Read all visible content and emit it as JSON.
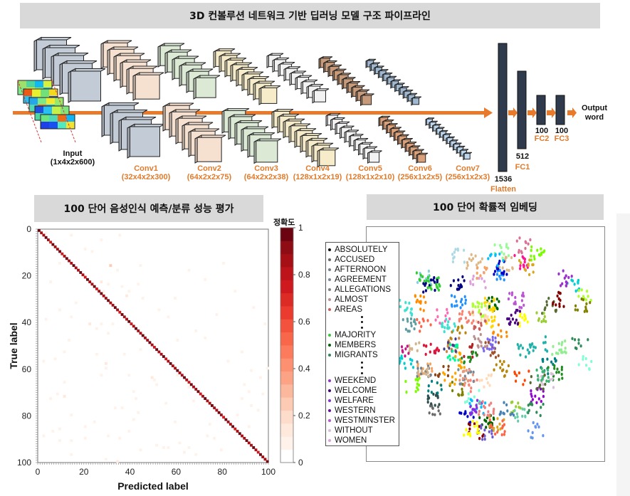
{
  "header": {
    "title": "3D 컨볼루션 네트워크 기반 딥러닝 모델 구조 파이프라인"
  },
  "pipeline": {
    "input": {
      "name": "Input",
      "shape": "(1x4x2x600)"
    },
    "layers": [
      {
        "name": "Conv1",
        "shape": "(32x4x2x300)",
        "color": "#f6e0d0"
      },
      {
        "name": "Conv2",
        "shape": "(64x2x2x75)",
        "color": "#dbe9d5"
      },
      {
        "name": "Conv3",
        "shape": "(64x2x2x38)",
        "color": "#dbe9d5"
      },
      {
        "name": "Conv4",
        "shape": "(128x1x2x19)",
        "color": "#f6ecc9"
      },
      {
        "name": "Conv5",
        "shape": "(128x1x2x10)",
        "color": "#f2f2f2"
      },
      {
        "name": "Conv6",
        "shape": "(256x1x2x5)",
        "color": "#f4c4a0"
      },
      {
        "name": "Conv7",
        "shape": "(256x1x2x3)",
        "color": "#bcd6ee"
      }
    ],
    "dense": [
      {
        "name": "Flatten",
        "size": "1536"
      },
      {
        "name": "FC1",
        "size": "512"
      },
      {
        "name": "FC2",
        "size": "100"
      },
      {
        "name": "FC3",
        "size": "100"
      }
    ],
    "output": {
      "line1": "Output",
      "line2": "word"
    },
    "accent_color": "#e9792b",
    "dense_color": "#2f3a4c"
  },
  "confusion": {
    "section_title": "100 단어 음성인식 예측/분류 성능 평가",
    "chart_data": {
      "type": "heatmap",
      "title": "100 단어 음성인식 예측/분류 성능 평가",
      "xlabel": "Predicted label",
      "ylabel": "True label",
      "xlim": [
        0,
        100
      ],
      "ylim": [
        0,
        100
      ],
      "xticks": [
        "0",
        "20",
        "40",
        "60",
        "80",
        "100"
      ],
      "yticks": [
        "0",
        "20",
        "40",
        "60",
        "80",
        "100"
      ],
      "diagonal_accuracy": 0.9,
      "off_diagonal": [
        [
          3,
          1,
          0.08
        ],
        [
          14,
          2,
          0.05
        ],
        [
          27,
          4,
          0.08
        ],
        [
          35,
          2,
          0.05
        ],
        [
          20,
          8,
          0.06
        ],
        [
          23,
          9,
          0.05
        ],
        [
          9,
          14,
          0.06
        ],
        [
          31,
          15,
          0.22
        ],
        [
          34,
          17,
          0.08
        ],
        [
          44,
          15,
          0.05
        ],
        [
          5,
          22,
          0.08
        ],
        [
          27,
          22,
          0.12
        ],
        [
          30,
          23,
          0.06
        ],
        [
          36,
          24,
          0.06
        ],
        [
          43,
          23,
          0.05
        ],
        [
          39,
          26,
          0.08
        ],
        [
          38,
          28,
          0.1
        ],
        [
          28,
          26,
          0.08
        ],
        [
          45,
          29,
          0.06
        ],
        [
          9,
          34,
          0.06
        ],
        [
          16,
          31,
          0.05
        ],
        [
          14,
          37,
          0.05
        ],
        [
          3,
          38,
          0.06
        ],
        [
          22,
          40,
          0.1
        ],
        [
          27,
          40,
          0.06
        ],
        [
          32,
          40,
          0.05
        ],
        [
          25,
          42,
          0.05
        ],
        [
          30,
          44,
          0.06
        ],
        [
          13,
          47,
          0.05
        ],
        [
          11,
          52,
          0.06
        ],
        [
          25,
          53,
          0.05
        ],
        [
          37,
          53,
          0.06
        ],
        [
          44,
          51,
          0.05
        ],
        [
          2,
          56,
          0.06
        ],
        [
          7,
          55,
          0.05
        ],
        [
          29,
          57,
          0.1
        ],
        [
          29,
          59,
          0.08
        ],
        [
          39,
          62,
          0.06
        ],
        [
          49,
          63,
          0.12
        ],
        [
          50,
          64,
          0.06
        ],
        [
          27,
          62,
          0.06
        ],
        [
          11,
          65,
          0.05
        ],
        [
          51,
          66,
          0.06
        ],
        [
          41,
          69,
          0.06
        ],
        [
          11,
          71,
          0.12
        ],
        [
          8,
          70,
          0.05
        ],
        [
          5,
          72,
          0.06
        ],
        [
          42,
          72,
          0.05
        ],
        [
          33,
          76,
          0.06
        ],
        [
          36,
          76,
          0.05
        ],
        [
          43,
          78,
          0.06
        ],
        [
          14,
          79,
          0.05
        ],
        [
          41,
          81,
          0.06
        ],
        [
          24,
          82,
          0.05
        ],
        [
          20,
          84,
          0.05
        ],
        [
          9,
          85,
          0.06
        ],
        [
          6,
          86,
          0.05
        ],
        [
          39,
          86,
          0.06
        ],
        [
          2,
          88,
          0.05
        ],
        [
          30,
          88,
          0.06
        ],
        [
          20,
          89,
          0.05
        ],
        [
          9,
          90,
          0.06
        ],
        [
          14,
          90,
          0.05
        ],
        [
          35,
          89,
          0.05
        ],
        [
          51,
          92,
          0.06
        ],
        [
          54,
          93,
          0.06
        ],
        [
          56,
          93,
          0.05
        ],
        [
          61,
          91,
          0.05
        ],
        [
          65,
          93,
          0.06
        ],
        [
          63,
          95,
          0.05
        ],
        [
          44,
          94,
          0.05
        ],
        [
          14,
          96,
          0.05
        ],
        [
          68,
          96,
          0.05
        ],
        [
          29,
          98,
          0.06
        ],
        [
          34,
          99,
          0.1
        ],
        [
          60,
          62,
          0.05
        ],
        [
          65,
          67,
          0.06
        ],
        [
          67,
          73,
          0.05
        ],
        [
          74,
          83,
          0.05
        ],
        [
          76,
          89,
          0.05
        ],
        [
          88,
          72,
          0.06
        ],
        [
          91,
          69,
          0.08
        ],
        [
          92,
          75,
          0.05
        ],
        [
          89,
          66,
          0.05
        ],
        [
          92,
          60,
          0.06
        ],
        [
          96,
          63,
          0.06
        ],
        [
          99,
          59,
          0.05
        ],
        [
          95,
          77,
          0.06
        ],
        [
          97,
          70,
          0.05
        ],
        [
          91,
          84,
          0.05
        ],
        [
          88,
          52,
          0.05
        ],
        [
          72,
          46,
          0.05
        ],
        [
          68,
          43,
          0.05
        ],
        [
          60,
          47,
          0.05
        ],
        [
          56,
          37,
          0.05
        ],
        [
          52,
          34,
          0.05
        ],
        [
          59,
          29,
          0.05
        ],
        [
          65,
          17,
          0.06
        ],
        [
          72,
          21,
          0.05
        ],
        [
          80,
          14,
          0.05
        ],
        [
          85,
          26,
          0.05
        ],
        [
          77,
          36,
          0.05
        ],
        [
          93,
          33,
          0.05
        ],
        [
          98,
          40,
          0.06
        ],
        [
          82,
          56,
          0.05
        ],
        [
          55,
          74,
          0.06
        ],
        [
          73,
          88,
          0.05
        ],
        [
          59,
          82,
          0.06
        ],
        [
          79,
          94,
          0.06
        ],
        [
          86,
          79,
          0.05
        ]
      ]
    },
    "colorbar": {
      "title": "정확도",
      "ticks": [
        "0",
        "0.2",
        "0.4",
        "0.6",
        "0.8",
        "1"
      ],
      "range": [
        0,
        1
      ],
      "colors": [
        "#ffffff",
        "#fff2ea",
        "#ffe8dc",
        "#fedccb",
        "#fdcbb4",
        "#fcb89c",
        "#fca385",
        "#fc9070",
        "#fb7b5c",
        "#f8674a",
        "#f3533c",
        "#ea3b2e",
        "#dc2a25",
        "#ce1a1e",
        "#bc141a",
        "#a50f15",
        "#8e0c14",
        "#6b0410"
      ]
    }
  },
  "embedding": {
    "section_title": "100 단어 확률적 임베딩",
    "legend": [
      {
        "label": "ABSOLUTELY",
        "color": "#111111"
      },
      {
        "label": "ACCUSED",
        "color": "#666666"
      },
      {
        "label": "AFTERNOON",
        "color": "#708090"
      },
      {
        "label": "AGREEMENT",
        "color": "#778899"
      },
      {
        "label": "ALLEGATIONS",
        "color": "#808080"
      },
      {
        "label": "ALMOST",
        "color": "#bc8f8f"
      },
      {
        "label": "AREAS",
        "color": "#cd5c5c"
      },
      {
        "label": "MAJORITY",
        "color": "#32cd32"
      },
      {
        "label": "MEMBERS",
        "color": "#006400"
      },
      {
        "label": "MIGRANTS",
        "color": "#2e8b57"
      },
      {
        "label": "WEEKEND",
        "color": "#9932cc"
      },
      {
        "label": "WELCOME",
        "color": "#4b0082"
      },
      {
        "label": "WELFARE",
        "color": "#8a2be2"
      },
      {
        "label": "WESTERN",
        "color": "#6a0dad"
      },
      {
        "label": "WESTMINSTER",
        "color": "#ba55d3"
      },
      {
        "label": "WITHOUT",
        "color": "#d8bfd8"
      },
      {
        "label": "WOMEN",
        "color": "#dda0dd"
      }
    ],
    "palette": [
      "#000080",
      "#0000cd",
      "#1e90ff",
      "#00bfff",
      "#00ced1",
      "#20b2aa",
      "#40e0d0",
      "#7fffd4",
      "#008080",
      "#2e8b57",
      "#006400",
      "#228b22",
      "#32cd32",
      "#7cfc00",
      "#adff2f",
      "#9acd32",
      "#556b2f",
      "#808000",
      "#ffd700",
      "#ffff00",
      "#daa520",
      "#b8860b",
      "#ff8c00",
      "#ffa500",
      "#f4a460",
      "#deb887",
      "#d2b48c",
      "#ffdab9",
      "#fa8072",
      "#ff6347",
      "#ff4500",
      "#dc143c",
      "#b22222",
      "#8b0000",
      "#a0522d",
      "#8b4513",
      "#cd853f",
      "#ff1493",
      "#ff69b4",
      "#db7093",
      "#c71585",
      "#9400d3",
      "#9932cc",
      "#8a2be2",
      "#6a5acd",
      "#483d8b",
      "#4b0082",
      "#7b68ee",
      "#ba55d3",
      "#dda0dd",
      "#d8bfd8",
      "#708090",
      "#778899",
      "#696969",
      "#2f4f4f",
      "#87ceeb",
      "#add8e6",
      "#4682b4",
      "#6495ed",
      "#5f9ea0",
      "#66cdaa",
      "#3cb371",
      "#90ee90",
      "#98fb98",
      "#00fa9a",
      "#e9967a",
      "#f08080",
      "#bc8f8f",
      "#cd5c5c",
      "#800000"
    ]
  }
}
